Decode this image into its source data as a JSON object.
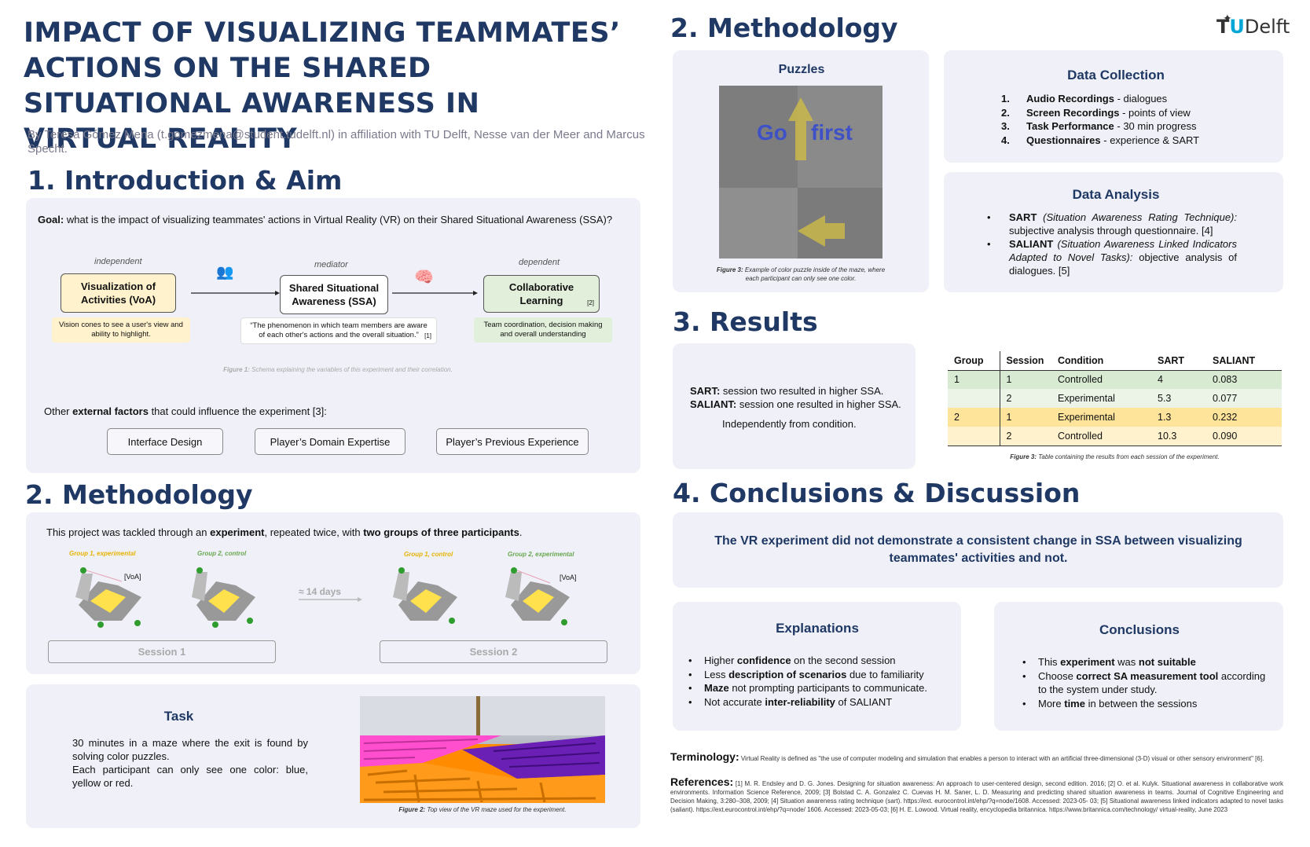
{
  "title": "IMPACT OF VISUALIZING TEAMMATES’ ACTIONS ON THE SHARED SITUATIONAL AWARENESS IN VIRTUAL REALITY",
  "authors": "By Teresa Gómez Mena (t.gomezmena@student.tudelft.nl) in affiliation with TU Delft, Nesse van der Meer and Marcus Specht.",
  "logo": {
    "t": "T",
    "u": "U",
    "delft": "Delft"
  },
  "intro": {
    "heading": "1. Introduction & Aim",
    "goal_label": "Goal:",
    "goal_text": " what is the impact of visualizing teammates' actions in Virtual Reality (VR) on their Shared Situational Awareness (SSA)?",
    "independent": "independent",
    "mediator": "mediator",
    "dependent": "dependent",
    "voa": "Visualization of Activities (VoA)",
    "ssa": "Shared Situational Awareness (SSA)",
    "cl": "Collaborative Learning",
    "cl_ref": "[2]",
    "voa_note": "Vision cones to see a user's view and ability to highlight.",
    "ssa_note": "“The phenomenon in which team members are aware of each other's actions and the overall situation.”",
    "ssa_ref": "[1]",
    "cl_note": "Team coordination, decision making and overall understanding",
    "fig1_label": "Figure 1:",
    "fig1_text": " Schema explaining the variables of this experiment and their correlation.",
    "ext_pre": "Other ",
    "ext_bold": "external factors",
    "ext_post": " that could influence the experiment [3]:",
    "factors": [
      "Interface Design",
      "Player’s Domain Expertise",
      "Player’s Previous Experience"
    ]
  },
  "method_left": {
    "heading": "2. Methodology",
    "p_pre": "This project was tackled through an ",
    "p_b1": "experiment",
    "p_mid": ", repeated twice, with ",
    "p_b2": "two groups of three participants",
    ".": ".",
    "p_end": ".",
    "g1e": "Group 1, experimental",
    "g2c": "Group 2, control",
    "g1c": "Group 1, control",
    "g2e": "Group 2, experimental",
    "voa_tag": "[VoA]",
    "days": "≈ 14 days",
    "session1": "Session 1",
    "session2": "Session 2",
    "task_title": "Task",
    "task_p1": "30 minutes in a maze where the exit is found by solving color puzzles.",
    "task_p2": "Each participant can only see one color: blue, yellow or red.",
    "fig2_label": "Figure 2:",
    "fig2_text": " Top view of the VR maze used for the experiment."
  },
  "method_right": {
    "heading": "2. Methodology",
    "puzzles": "Puzzles",
    "go": "Go",
    "first": "first",
    "fig3_label": "Figure 3:",
    "fig3_text": " Example of color puzzle inside of the maze, where each participant can only see one color.",
    "dc_title": "Data Collection",
    "dc": [
      [
        "Audio Recordings",
        " - dialogues"
      ],
      [
        "Screen Recordings",
        " - points of view"
      ],
      [
        "Task Performance",
        " - 30 min progress"
      ],
      [
        "Questionnaires",
        " - experience & SART"
      ]
    ],
    "da_title": "Data Analysis",
    "da": [
      {
        "b": "SART",
        "i": " (Situation Awareness Rating Technique):",
        "t": " subjective analysis through questionnaire. [4]"
      },
      {
        "b": "SALIANT",
        "i": " (Situation Awareness Linked Indicators Adapted to Novel Tasks):",
        "t": " objective analysis of dialogues. [5]"
      }
    ]
  },
  "results": {
    "heading": "3. Results",
    "sart_b": "SART:",
    "sart_t": " session two resulted in higher SSA.",
    "saliant_b": "SALIANT:",
    "saliant_t": " session one resulted in higher SSA.",
    "indep": "Independently from condition.",
    "cols": [
      "Group",
      "Session",
      "Condition",
      "SART",
      "SALIANT"
    ],
    "rows": [
      [
        "1",
        "1",
        "Controlled",
        "4",
        "0.083"
      ],
      [
        "",
        "2",
        "Experimental",
        "5.3",
        "0.077"
      ],
      [
        "2",
        "1",
        "Experimental",
        "1.3",
        "0.232"
      ],
      [
        "",
        "2",
        "Controlled",
        "10.3",
        "0.090"
      ]
    ],
    "fig_label": "Figure 3:",
    "fig_text": " Table containing the results from each session of the experiment."
  },
  "conclusions": {
    "heading": "4. Conclusions & Discussion",
    "main": "The VR experiment did not demonstrate a consistent change in SSA between visualizing teammates' activities and not.",
    "exp_title": "Explanations",
    "exp": [
      [
        "Higher ",
        "confidence",
        " on the second session"
      ],
      [
        "Less ",
        "description of scenarios",
        " due to familiarity"
      ],
      [
        "",
        "Maze",
        " not prompting participants to communicate."
      ],
      [
        "Not accurate ",
        "inter-reliability",
        " of SALIANT"
      ]
    ],
    "con_title": "Conclusions",
    "con": [
      [
        "This ",
        "experiment",
        " was ",
        "not suitable",
        ""
      ],
      [
        "Choose ",
        "correct SA measurement tool",
        " according to the system under study.",
        "",
        ""
      ],
      [
        "More ",
        "time",
        " in between the sessions",
        "",
        ""
      ]
    ]
  },
  "terminology": {
    "label": "Terminology:",
    "text": " Virtual Reality is defined as \"the use of computer modeling and simulation that enables a person to interact with an artificial three-dimensional (3-D) visual or other sensory environment\" [6]."
  },
  "references": {
    "label": "References:",
    "text": " [1] M. R. Endsley and D. G. Jones. Designing for situation awareness: An approach to user-centered design, second edition. 2016; [2] O. et al. Kulyk. Situational awareness in collaborative work environments. Information Science Reference, 2009; [3] Bolstad C. A. Gonzalez C. Cuevas H. M. Saner, L. D. Measuring and predicting shared situation awareness in teams. Journal of Cognitive Engineering and Decision Making, 3:280–308, 2009; [4] Situation awareness rating technique (sart). https://ext. eurocontrol.int/ehp/?q=node/1608. Accessed: 2023-05- 03; [5] Situational awareness linked indicators adapted to novel tasks (saliant). https://ext.eurocontrol.int/ehp/?q=node/ 1606. Accessed: 2023-05-03; [6] H. E. Lowood. Virtual reality, encyclopedia britannica. https://www.britannica.com/technology/ virtual-reality, June 2023"
  },
  "colors": {
    "navy": "#1f3864",
    "panel": "#eff0f8",
    "voa": "#fff2cc",
    "cl": "#e2efda",
    "row_green": "#d9ead3",
    "row_yellow": "#fde49a"
  }
}
